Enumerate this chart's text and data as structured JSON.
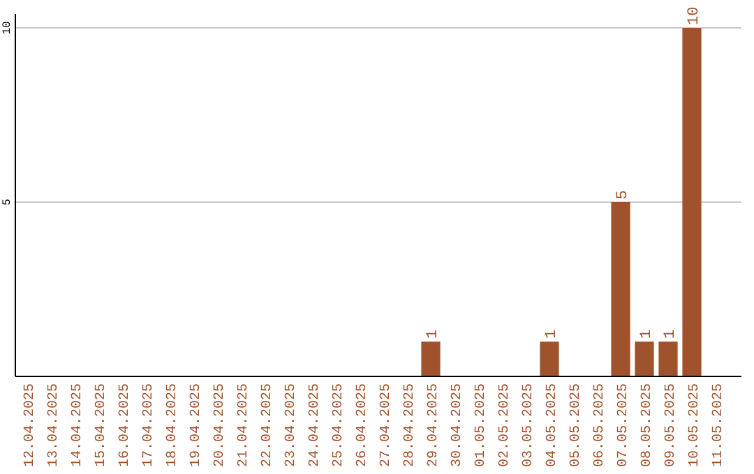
{
  "chart_data": {
    "type": "bar",
    "categories": [
      "12.04.2025",
      "13.04.2025",
      "14.04.2025",
      "15.04.2025",
      "16.04.2025",
      "17.04.2025",
      "18.04.2025",
      "19.04.2025",
      "20.04.2025",
      "21.04.2025",
      "22.04.2025",
      "23.04.2025",
      "24.04.2025",
      "25.04.2025",
      "26.04.2025",
      "27.04.2025",
      "28.04.2025",
      "29.04.2025",
      "30.04.2025",
      "01.05.2025",
      "02.05.2025",
      "03.05.2025",
      "04.05.2025",
      "05.05.2025",
      "06.05.2025",
      "07.05.2025",
      "08.05.2025",
      "09.05.2025",
      "10.05.2025",
      "11.05.2025"
    ],
    "values": [
      0,
      0,
      0,
      0,
      0,
      0,
      0,
      0,
      0,
      0,
      0,
      0,
      0,
      0,
      0,
      0,
      0,
      1,
      0,
      0,
      0,
      0,
      1,
      0,
      0,
      5,
      1,
      1,
      10,
      0
    ],
    "value_labels": [
      null,
      null,
      null,
      null,
      null,
      null,
      null,
      null,
      null,
      null,
      null,
      null,
      null,
      null,
      null,
      null,
      null,
      "1",
      null,
      null,
      null,
      null,
      "1",
      null,
      null,
      "5",
      "1",
      "1",
      "10",
      null
    ],
    "color": "#a0522d",
    "ylim": [
      0,
      10.4
    ],
    "yticks": [
      5,
      10
    ],
    "grid": "y"
  }
}
